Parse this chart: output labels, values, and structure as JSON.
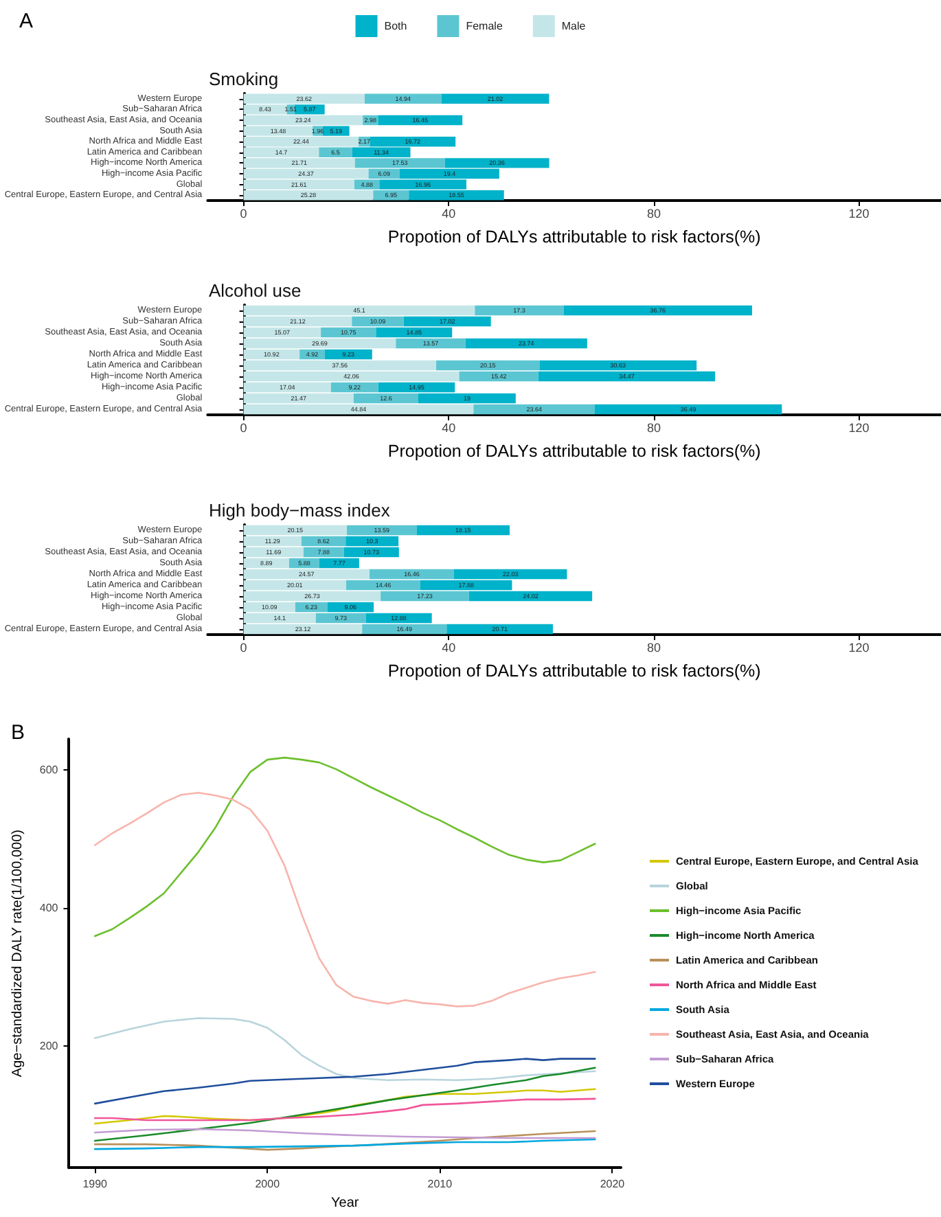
{
  "chart_data": [
    {
      "type": "bar",
      "orientation": "horizontal",
      "stacked": true,
      "data_labels": true,
      "legend": "top",
      "annotations": [
        "A"
      ],
      "title": "Smoking",
      "xlabel": "Propotion of DALYs attributable to risk factors(%)",
      "xlim": [
        -7,
        136
      ],
      "xticks": [
        0,
        40,
        80,
        120
      ],
      "categories": [
        "Western Europe",
        "Sub−Saharan Africa",
        "Southeast Asia, East Asia, and Oceania",
        "South Asia",
        "North Africa and Middle East",
        "Latin America and Caribbean",
        "High−income North America",
        "High−income Asia Pacific",
        "Global",
        "Central Europe, Eastern Europe, and Central Asia"
      ],
      "series": [
        {
          "name": "Male",
          "color": "#c5e6e8",
          "values": [
            23.62,
            8.43,
            23.24,
            13.48,
            22.44,
            14.7,
            21.71,
            24.37,
            21.61,
            25.28
          ]
        },
        {
          "name": "Female",
          "color": "#5bc6d2",
          "values": [
            14.94,
            1.51,
            2.98,
            1.96,
            2.17,
            6.5,
            17.53,
            6.09,
            4.88,
            6.95
          ]
        },
        {
          "name": "Both",
          "color": "#00b2ca",
          "values": [
            21.02,
            5.87,
            16.45,
            5.19,
            16.72,
            11.34,
            20.36,
            19.4,
            16.96,
            18.55
          ]
        }
      ]
    },
    {
      "type": "bar",
      "orientation": "horizontal",
      "stacked": true,
      "data_labels": true,
      "title": "Alcohol use",
      "xlabel": "Propotion of DALYs attributable to risk factors(%)",
      "xlim": [
        -7,
        136
      ],
      "xticks": [
        0,
        40,
        80,
        120
      ],
      "categories": [
        "Western Europe",
        "Sub−Saharan Africa",
        "Southeast Asia, East Asia, and Oceania",
        "South Asia",
        "North Africa and Middle East",
        "Latin America and Caribbean",
        "High−income North America",
        "High−income Asia Pacific",
        "Global",
        "Central Europe, Eastern Europe, and Central Asia"
      ],
      "series": [
        {
          "color": "#c5e6e8",
          "values": [
            45.1,
            21.12,
            15.07,
            29.69,
            10.92,
            37.56,
            42.06,
            17.04,
            21.47,
            44.84
          ]
        },
        {
          "color": "#5bc6d2",
          "values": [
            17.3,
            10.09,
            10.75,
            13.57,
            4.92,
            20.15,
            15.42,
            9.22,
            12.6,
            23.64
          ]
        },
        {
          "color": "#00b2ca",
          "values": [
            36.76,
            17.02,
            14.85,
            23.74,
            9.23,
            30.63,
            34.47,
            14.95,
            19,
            36.49
          ]
        }
      ]
    },
    {
      "type": "bar",
      "orientation": "horizontal",
      "stacked": true,
      "data_labels": true,
      "title": "High body−mass index",
      "xlabel": "Propotion of DALYs attributable to risk factors(%)",
      "xlim": [
        -7,
        136
      ],
      "xticks": [
        0,
        40,
        80,
        120
      ],
      "categories": [
        "Western Europe",
        "Sub−Saharan Africa",
        "Southeast Asia, East Asia, and Oceania",
        "South Asia",
        "North Africa and Middle East",
        "Latin America and Caribbean",
        "High−income North America",
        "High−income Asia Pacific",
        "Global",
        "Central Europe, Eastern Europe, and Central Asia"
      ],
      "series": [
        {
          "color": "#c5e6e8",
          "values": [
            20.15,
            11.29,
            11.69,
            8.89,
            24.57,
            20.01,
            26.73,
            10.09,
            14.1,
            23.12
          ]
        },
        {
          "color": "#5bc6d2",
          "values": [
            13.59,
            8.62,
            7.88,
            5.88,
            16.46,
            14.46,
            17.23,
            6.23,
            9.73,
            16.49
          ]
        },
        {
          "color": "#00b2ca",
          "values": [
            18.15,
            10.3,
            10.73,
            7.77,
            22.03,
            17.88,
            24.02,
            9.06,
            12.88,
            20.71
          ]
        }
      ]
    },
    {
      "type": "line",
      "legend": "right",
      "annotations": [
        "B"
      ],
      "xlabel": "Year",
      "ylabel": "Age−standardized DALY rate(1/100,000)",
      "xlim": [
        1988.5,
        2020.5
      ],
      "xticks": [
        1990,
        2000,
        2010,
        2020
      ],
      "ylim": [
        23,
        645
      ],
      "yticks": [
        200,
        400,
        600
      ],
      "series": [
        {
          "name": "Central Europe, Eastern Europe, and Central Asia",
          "color": "#d4c800",
          "x": [
            1990,
            1992,
            1994,
            1995,
            1997,
            1999,
            2001,
            2003,
            2004,
            2005,
            2007,
            2008,
            2010,
            2012,
            2014,
            2015,
            2016,
            2017,
            2019
          ],
          "values": [
            87,
            92,
            98,
            97,
            94,
            92,
            95,
            102,
            106,
            113,
            121,
            126,
            130,
            130,
            133,
            135,
            135,
            133,
            137
          ]
        },
        {
          "name": "Global",
          "color": "#b8d4dc",
          "x": [
            1990,
            1992,
            1994,
            1996,
            1998,
            1999,
            2000,
            2001,
            2002,
            2003,
            2004,
            2005,
            2007,
            2009,
            2011,
            2013,
            2015,
            2017,
            2019
          ],
          "values": [
            211,
            224,
            235,
            240,
            239,
            235,
            226,
            208,
            186,
            171,
            159,
            153,
            150,
            151,
            150,
            152,
            157,
            160,
            163
          ]
        },
        {
          "name": "High−income Asia Pacific",
          "color": "#6cbf2c",
          "x": [
            1990,
            1991,
            1992,
            1993,
            1994,
            1995,
            1996,
            1997,
            1998,
            1999,
            2000,
            2001,
            2002,
            2003,
            2004,
            2005,
            2006,
            2007,
            2008,
            2009,
            2010,
            2011,
            2012,
            2013,
            2014,
            2015,
            2016,
            2017,
            2018,
            2019
          ],
          "values": [
            359,
            369,
            385,
            402,
            421,
            451,
            481,
            517,
            561,
            597,
            615,
            618,
            615,
            611,
            601,
            588,
            575,
            563,
            551,
            538,
            527,
            514,
            502,
            489,
            477,
            470,
            466,
            469,
            481,
            493
          ]
        },
        {
          "name": "High−income North America",
          "color": "#1a8a2a",
          "x": [
            1990,
            1993,
            1996,
            1999,
            2001,
            2003,
            2005,
            2007,
            2009,
            2011,
            2013,
            2015,
            2016,
            2017,
            2019
          ],
          "values": [
            62,
            70,
            79,
            88,
            96,
            104,
            112,
            121,
            128,
            135,
            143,
            150,
            156,
            159,
            168
          ]
        },
        {
          "name": "Latin America and Caribbean",
          "color": "#b8905a",
          "x": [
            1990,
            1993,
            1996,
            1998,
            2000,
            2002,
            2004,
            2006,
            2008,
            2010,
            2012,
            2014,
            2016,
            2019
          ],
          "values": [
            57,
            57,
            55,
            52,
            49,
            51,
            54,
            56,
            59,
            62,
            66,
            69,
            72,
            76
          ]
        },
        {
          "name": "North Africa and Middle East",
          "color": "#f0569a",
          "x": [
            1990,
            1991,
            1993,
            1995,
            1997,
            1999,
            2001,
            2003,
            2005,
            2007,
            2008,
            2009,
            2011,
            2013,
            2015,
            2017,
            2019
          ],
          "values": [
            95,
            95,
            92,
            92,
            92,
            92,
            95,
            97,
            100,
            105,
            108,
            114,
            116,
            119,
            122,
            122,
            123
          ]
        },
        {
          "name": "South Asia",
          "color": "#00a8e0",
          "x": [
            1990,
            1993,
            1996,
            1999,
            2002,
            2005,
            2008,
            2011,
            2014,
            2016,
            2019
          ],
          "values": [
            50,
            51,
            53,
            53,
            54,
            55,
            58,
            60,
            60,
            62,
            64
          ]
        },
        {
          "name": "Southeast Asia, East Asia, and Oceania",
          "color": "#f8b4ac",
          "x": [
            1990,
            1991,
            1992,
            1993,
            1994,
            1995,
            1996,
            1997,
            1998,
            1999,
            2000,
            2001,
            2002,
            2003,
            2004,
            2005,
            2006,
            2007,
            2008,
            2009,
            2010,
            2011,
            2012,
            2013,
            2014,
            2015,
            2016,
            2017,
            2018,
            2019
          ],
          "values": [
            491,
            508,
            522,
            537,
            553,
            564,
            567,
            563,
            557,
            543,
            512,
            461,
            390,
            327,
            288,
            271,
            265,
            261,
            266,
            262,
            260,
            257,
            258,
            265,
            276,
            284,
            292,
            298,
            302,
            307
          ]
        },
        {
          "name": "Sub−Saharan Africa",
          "color": "#c39bd3",
          "x": [
            1990,
            1993,
            1996,
            1999,
            2002,
            2005,
            2008,
            2011,
            2014,
            2017,
            2019
          ],
          "values": [
            74,
            78,
            79,
            77,
            73,
            70,
            68,
            67,
            66,
            66,
            66
          ]
        },
        {
          "name": "Western Europe",
          "color": "#1f4e9c",
          "x": [
            1990,
            1992,
            1994,
            1996,
            1998,
            1999,
            2001,
            2003,
            2005,
            2007,
            2009,
            2011,
            2012,
            2014,
            2015,
            2016,
            2017,
            2019
          ],
          "values": [
            116,
            125,
            134,
            139,
            145,
            149,
            151,
            153,
            155,
            159,
            165,
            171,
            176,
            179,
            181,
            179,
            181,
            181
          ]
        }
      ]
    }
  ]
}
